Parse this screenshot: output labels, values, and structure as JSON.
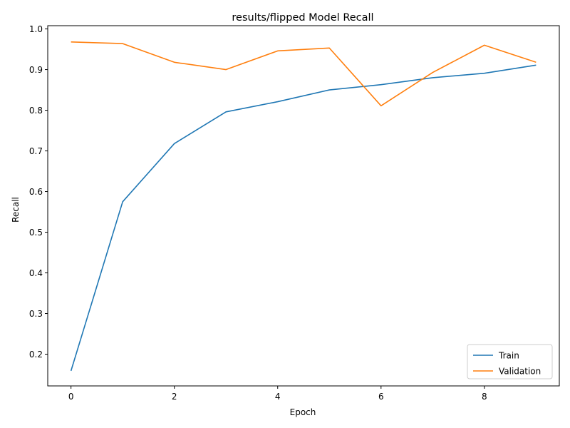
{
  "chart_data": {
    "type": "line",
    "title": "results/flipped Model Recall",
    "xlabel": "Epoch",
    "ylabel": "Recall",
    "x": [
      0,
      1,
      2,
      3,
      4,
      5,
      6,
      7,
      8,
      9
    ],
    "xlim": [
      -0.45,
      9.45
    ],
    "ylim": [
      0.122,
      1.008
    ],
    "xticks": [
      0,
      2,
      4,
      6,
      8
    ],
    "yticks": [
      0.2,
      0.3,
      0.4,
      0.5,
      0.6,
      0.7,
      0.8,
      0.9,
      1.0
    ],
    "ytick_labels": [
      "0.2",
      "0.3",
      "0.4",
      "0.5",
      "0.6",
      "0.7",
      "0.8",
      "0.9",
      "1.0"
    ],
    "grid": false,
    "legend_position": "lower-right",
    "series": [
      {
        "name": "Train",
        "color": "#1f77b4",
        "values": [
          0.159,
          0.575,
          0.718,
          0.796,
          0.821,
          0.85,
          0.863,
          0.88,
          0.891,
          0.911
        ]
      },
      {
        "name": "Validation",
        "color": "#ff7f0e",
        "values": [
          0.968,
          0.964,
          0.918,
          0.9,
          0.946,
          0.953,
          0.811,
          0.893,
          0.96,
          0.918
        ]
      }
    ]
  }
}
